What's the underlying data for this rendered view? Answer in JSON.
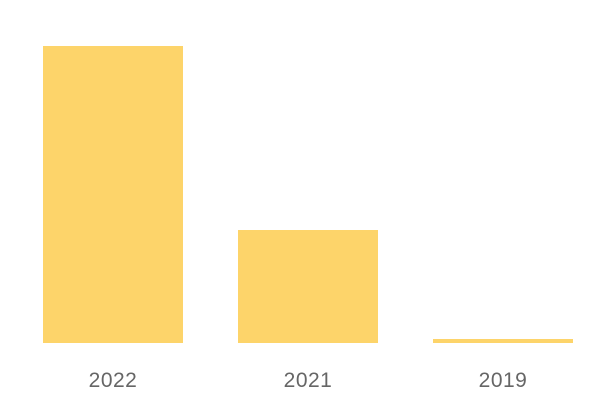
{
  "chart_data": {
    "type": "bar",
    "categories": [
      "2022",
      "2021",
      "2019"
    ],
    "values": [
      297,
      113,
      4
    ],
    "title": "",
    "xlabel": "",
    "ylabel": "",
    "ylim": [
      0,
      297
    ],
    "grid": false,
    "bar_color": "#fdd46a",
    "tick_color": "#666666"
  }
}
